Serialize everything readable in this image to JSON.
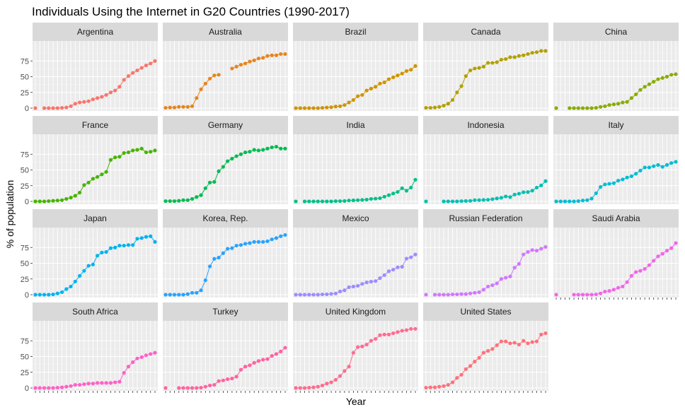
{
  "chart_data": {
    "type": "line",
    "title": "Individuals Using the Internet in G20 Countries (1990-2017)",
    "xlabel": "Year",
    "ylabel": "% of population",
    "x": [
      1990,
      1991,
      1992,
      1993,
      1994,
      1995,
      1996,
      1997,
      1998,
      1999,
      2000,
      2001,
      2002,
      2003,
      2004,
      2005,
      2006,
      2007,
      2008,
      2009,
      2010,
      2011,
      2012,
      2013,
      2014,
      2015,
      2016,
      2017
    ],
    "xlim": [
      1990,
      2017
    ],
    "ylim": [
      0,
      100
    ],
    "yticks": [
      0,
      25,
      50,
      75
    ],
    "ytick_labels": [
      "0",
      "25",
      "50",
      "75"
    ],
    "grid": true,
    "legend": "none",
    "facet_columns": 5,
    "series": [
      {
        "name": "Argentina",
        "color": "#F8766D",
        "values": [
          0,
          null,
          0,
          0,
          0,
          0,
          0.5,
          1,
          3,
          7,
          9,
          10,
          11,
          14,
          16,
          18,
          21,
          25,
          28,
          34,
          45,
          51,
          56,
          60,
          64,
          68,
          71,
          75
        ]
      },
      {
        "name": "Australia",
        "color": "#E7851E",
        "values": [
          0.5,
          1,
          1,
          2,
          2,
          2,
          3,
          16,
          30,
          39,
          47,
          52,
          53,
          null,
          null,
          63,
          66,
          69,
          71,
          74,
          76,
          79,
          80,
          83,
          84,
          84,
          86,
          86
        ]
      },
      {
        "name": "Brazil",
        "color": "#D09400",
        "values": [
          0,
          0,
          0,
          0,
          0,
          0,
          0.5,
          1,
          1.5,
          2.5,
          3,
          5,
          9,
          13,
          19,
          21,
          28,
          31,
          34,
          39,
          41,
          46,
          49,
          52,
          55,
          59,
          61,
          67
        ]
      },
      {
        "name": "Canada",
        "color": "#B2A100",
        "values": [
          0.5,
          0.5,
          1,
          2,
          4,
          7,
          13,
          25,
          35,
          51,
          60,
          63,
          64,
          66,
          72,
          72,
          73,
          77,
          78,
          81,
          81,
          83,
          84,
          86,
          88,
          89,
          91,
          91
        ]
      },
      {
        "name": "China",
        "color": "#89AC00",
        "values": [
          0,
          null,
          null,
          0,
          0,
          0,
          0,
          0,
          0,
          0.5,
          2,
          3,
          5,
          6,
          7,
          9,
          10,
          16,
          22,
          29,
          34,
          38,
          42,
          46,
          48,
          50,
          53,
          54
        ]
      },
      {
        "name": "France",
        "color": "#45B500",
        "values": [
          0,
          0,
          0,
          0.5,
          1,
          1.5,
          2,
          4,
          6,
          9,
          14,
          26,
          30,
          36,
          39,
          43,
          47,
          66,
          70,
          71,
          77,
          78,
          81,
          82,
          84,
          78,
          79,
          81
        ]
      },
      {
        "name": "Germany",
        "color": "#00BC51",
        "values": [
          0.5,
          0.5,
          0.5,
          1,
          2,
          2,
          4,
          7,
          10,
          21,
          30,
          31,
          48,
          55,
          64,
          68,
          72,
          75,
          78,
          79,
          82,
          81,
          82,
          84,
          86,
          87,
          84,
          84
        ]
      },
      {
        "name": "India",
        "color": "#00C087",
        "values": [
          0,
          null,
          0,
          0,
          0,
          0,
          0,
          0,
          0,
          0.5,
          0.5,
          0.7,
          1.5,
          1.7,
          2,
          2.4,
          2.8,
          4,
          4.4,
          5.1,
          7.5,
          10,
          12.6,
          15.1,
          21,
          17,
          22,
          34.5
        ]
      },
      {
        "name": "Indonesia",
        "color": "#00C0B2",
        "values": [
          0,
          null,
          null,
          null,
          0,
          0,
          0,
          0,
          0.5,
          0.7,
          0.9,
          2,
          2,
          2.4,
          2.6,
          3.6,
          4.8,
          5.8,
          7.9,
          6.9,
          10.9,
          12.3,
          14.6,
          14.9,
          17.1,
          22,
          25.4,
          32.3
        ]
      },
      {
        "name": "Italy",
        "color": "#00BCD6",
        "values": [
          0,
          0,
          0,
          0,
          0,
          0.5,
          1.5,
          2,
          4.5,
          13,
          23,
          27,
          28,
          29,
          33,
          35,
          38,
          40,
          44,
          49,
          54,
          54,
          56,
          58,
          55,
          58,
          61,
          63
        ]
      },
      {
        "name": "Japan",
        "color": "#00B3F2",
        "values": [
          0,
          0,
          0,
          0,
          0.5,
          2,
          4,
          9,
          13,
          21,
          30,
          38,
          46,
          48,
          62,
          67,
          68,
          74,
          75,
          78,
          78,
          79,
          79,
          89,
          90,
          92,
          93,
          84
        ]
      },
      {
        "name": "Korea, Rep.",
        "color": "#29A3FF",
        "values": [
          0,
          0,
          0,
          0,
          0,
          1,
          3,
          3,
          7,
          23,
          45,
          57,
          59,
          66,
          73,
          74,
          78,
          79,
          81,
          82,
          84,
          84,
          84,
          85,
          88,
          90,
          93,
          95
        ]
      },
      {
        "name": "Mexico",
        "color": "#9C8DFF",
        "values": [
          0,
          0,
          0,
          0,
          0,
          0,
          0.5,
          0.6,
          1.3,
          1.9,
          5.1,
          7,
          11.9,
          12.9,
          14.1,
          17.2,
          19.5,
          20.8,
          21.7,
          26.3,
          31.1,
          37.2,
          39.8,
          43.5,
          44.4,
          57.4,
          59.5,
          63.9
        ]
      },
      {
        "name": "Russian Federation",
        "color": "#D277FF",
        "values": [
          0,
          null,
          0,
          0,
          0,
          0,
          0.5,
          0.5,
          1,
          1,
          2,
          3,
          4,
          8,
          13,
          15,
          18,
          25,
          27,
          29,
          43,
          49,
          64,
          68,
          71,
          70,
          73,
          76
        ]
      },
      {
        "name": "Saudi Arabia",
        "color": "#F166E9",
        "values": [
          0,
          null,
          null,
          null,
          0,
          0,
          0,
          0,
          0,
          0.5,
          2,
          5,
          6,
          8,
          11,
          13,
          20,
          30,
          36,
          38,
          41,
          47,
          54,
          61,
          65,
          70,
          74,
          82
        ]
      },
      {
        "name": "South Africa",
        "color": "#FF61C7",
        "values": [
          0,
          0,
          0,
          0,
          0,
          0.5,
          1,
          2,
          3,
          5,
          5,
          6,
          7,
          7,
          8,
          8,
          8,
          8,
          9,
          10,
          24,
          34,
          41,
          47,
          49,
          52,
          54,
          56
        ]
      },
      {
        "name": "Turkey",
        "color": "#FF63A0",
        "values": [
          0,
          null,
          null,
          0,
          0,
          0,
          0,
          0,
          0.5,
          2,
          4,
          5,
          11,
          12,
          14,
          15,
          18,
          29,
          34,
          36,
          40,
          43,
          45,
          46,
          51,
          54,
          58,
          64
        ]
      },
      {
        "name": "United Kingdom",
        "color": "#FF6C91",
        "values": [
          0,
          0,
          0,
          0.5,
          1,
          2,
          4,
          7,
          9,
          13,
          19,
          27,
          34,
          56,
          65,
          66,
          69,
          75,
          78,
          84,
          85,
          85,
          87,
          89,
          91,
          92,
          94,
          94
        ]
      },
      {
        "name": "United States",
        "color": "#FF717A",
        "values": [
          0.5,
          1,
          1,
          2,
          3,
          5,
          9,
          16,
          21,
          30,
          35,
          42,
          48,
          56,
          59,
          62,
          68,
          74,
          74,
          71,
          72,
          69,
          75,
          71,
          73,
          74,
          85,
          87
        ]
      }
    ]
  }
}
